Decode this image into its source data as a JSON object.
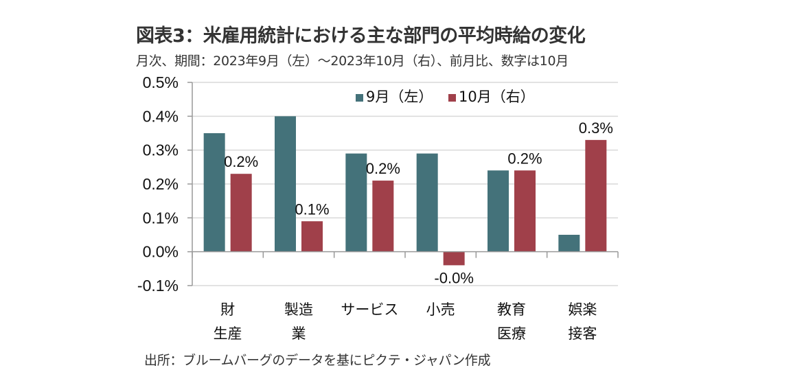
{
  "header": {
    "title": "図表3：米雇用統計における主な部門の平均時給の変化",
    "subtitle": "月次、期間：2023年9月（左）～2023年10月（右）、前月比、数字は10月"
  },
  "footer": {
    "source": "出所：ブルームバーグのデータを基にピクテ・ジャパン作成"
  },
  "chart_data": {
    "type": "bar",
    "title": "図表3：米雇用統計における主な部門の平均時給の変化",
    "subtitle": "月次、期間：2023年9月（左）～2023年10月（右）、前月比、数字は10月",
    "xlabel": "",
    "ylabel": "",
    "unit": "%",
    "ylim": [
      -0.1,
      0.5
    ],
    "yticks": [
      0.5,
      0.4,
      0.3,
      0.2,
      0.1,
      0.0,
      -0.1
    ],
    "ytick_labels": [
      "0.5%",
      "0.4%",
      "0.3%",
      "0.2%",
      "0.1%",
      "0.0%",
      "-0.1%"
    ],
    "grid": true,
    "legend_position": "top-center",
    "categories": [
      [
        "財",
        "生産"
      ],
      [
        "製造",
        "業"
      ],
      [
        "サービス"
      ],
      [
        "小売"
      ],
      [
        "教育",
        "医療"
      ],
      [
        "娯楽",
        "接客"
      ]
    ],
    "series": [
      {
        "name": "9月（左）",
        "color": "#44727A",
        "values": [
          0.35,
          0.4,
          0.29,
          0.29,
          0.24,
          0.05
        ]
      },
      {
        "name": "10月（右）",
        "color": "#A0404A",
        "values": [
          0.23,
          0.09,
          0.21,
          -0.04,
          0.24,
          0.33
        ],
        "data_labels": [
          "0.2%",
          "0.1%",
          "0.2%",
          "-0.0%",
          "0.2%",
          "0.3%"
        ]
      }
    ]
  }
}
